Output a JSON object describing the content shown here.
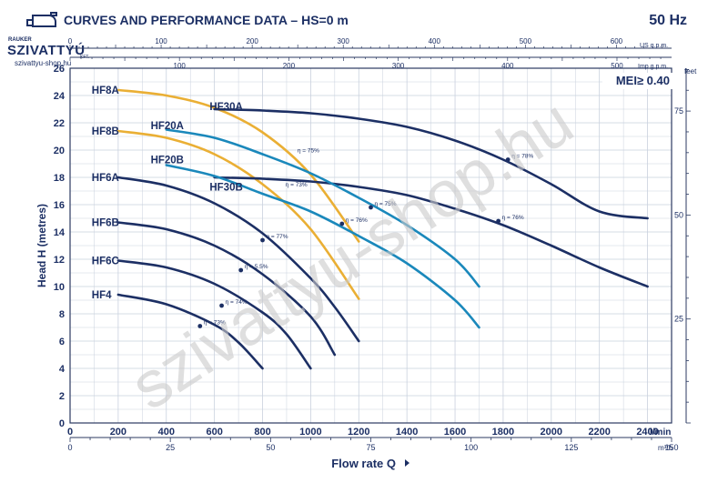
{
  "header": {
    "title": "CURVES AND PERFORMANCE DATA  –  HS=0 m",
    "freq": "50 Hz",
    "brand": "SZIVATTYÚ",
    "brand_top": "RAUKER",
    "brand_kft": "KFT.",
    "website": "szivattyu-shop.hu"
  },
  "watermark": "szivattyu-shop.hu",
  "colors": {
    "navy": "#1c2f64",
    "teal": "#1a88bb",
    "gold": "#eaaf34",
    "grid": "#c9d1de",
    "frame": "#2b3a62",
    "text": "#1c2f64",
    "watermark": "#c9c9c9"
  },
  "chart_data": {
    "type": "line",
    "mei": "MEI≥ 0.40",
    "xlabel": "Flow rate Q",
    "ylabel": "Head H (metres)",
    "x_unit": "l/min",
    "m3h_unit": "m³/h",
    "feet_unit": "feet",
    "us_unit": "US g.p.m.",
    "imp_unit": "Imp g.p.m.",
    "xlim": [
      0,
      2500
    ],
    "ylim": [
      0,
      26
    ],
    "x_ticks": [
      0,
      200,
      400,
      600,
      800,
      1000,
      1200,
      1400,
      1600,
      1800,
      2000,
      2200,
      2400
    ],
    "y_ticks": [
      0,
      2,
      4,
      6,
      8,
      10,
      12,
      14,
      16,
      18,
      20,
      22,
      24,
      26
    ],
    "m3h_ticks": [
      0,
      25,
      50,
      75,
      100,
      125,
      150
    ],
    "us_ticks": [
      0,
      100,
      200,
      300,
      400,
      500,
      600
    ],
    "imp_ticks": [
      100,
      200,
      300,
      400,
      500
    ],
    "feet_ticks": [
      25,
      50,
      75
    ],
    "series": [
      {
        "name": "HF8A",
        "color": "gold",
        "label_at": [
          90,
          24.4
        ],
        "x": [
          200,
          400,
          600,
          800,
          1000,
          1200
        ],
        "y": [
          24.4,
          24,
          23.1,
          21.3,
          18.2,
          13.3
        ]
      },
      {
        "name": "HF8B",
        "color": "gold",
        "label_at": [
          90,
          21.4
        ],
        "x": [
          200,
          400,
          600,
          800,
          1000,
          1200
        ],
        "y": [
          21.4,
          20.9,
          19.7,
          17.5,
          14.2,
          9.1
        ]
      },
      {
        "name": "HF30A",
        "color": "navy",
        "label_at": [
          580,
          23.2
        ],
        "x": [
          600,
          800,
          1000,
          1200,
          1400,
          1600,
          1800,
          2000,
          2200,
          2400
        ],
        "y": [
          23,
          22.9,
          22.7,
          22.3,
          21.7,
          20.7,
          19.3,
          17.5,
          15.5,
          15
        ]
      },
      {
        "name": "HF30B",
        "color": "navy",
        "label_at": [
          580,
          17.3
        ],
        "x": [
          600,
          800,
          1000,
          1200,
          1400,
          1600,
          1800,
          2000,
          2200,
          2400
        ],
        "y": [
          18,
          17.9,
          17.7,
          17.3,
          16.7,
          15.7,
          14.5,
          13,
          11.4,
          10
        ]
      },
      {
        "name": "HF20A",
        "color": "teal",
        "label_at": [
          335,
          21.8
        ],
        "x": [
          400,
          600,
          800,
          1000,
          1200,
          1400,
          1600,
          1700
        ],
        "y": [
          21.5,
          20.9,
          19.7,
          18.3,
          16.5,
          14.5,
          12,
          10
        ]
      },
      {
        "name": "HF20B",
        "color": "teal",
        "label_at": [
          335,
          19.3
        ],
        "x": [
          400,
          600,
          800,
          1000,
          1200,
          1400,
          1600,
          1700
        ],
        "y": [
          18.9,
          18.1,
          16.8,
          15.5,
          13.7,
          11.7,
          9,
          7
        ]
      },
      {
        "name": "HF6A",
        "color": "navy",
        "label_at": [
          90,
          18
        ],
        "x": [
          200,
          400,
          600,
          800,
          1000,
          1100,
          1200
        ],
        "y": [
          18,
          17.4,
          16.1,
          13.9,
          10.6,
          8.5,
          6
        ]
      },
      {
        "name": "HF6B",
        "color": "navy",
        "label_at": [
          90,
          14.7
        ],
        "x": [
          200,
          400,
          600,
          800,
          1000,
          1100
        ],
        "y": [
          14.7,
          14.2,
          13,
          10.9,
          7.8,
          5
        ]
      },
      {
        "name": "HF6C",
        "color": "navy",
        "label_at": [
          90,
          11.9
        ],
        "x": [
          200,
          400,
          600,
          800,
          900,
          1000
        ],
        "y": [
          11.9,
          11.4,
          10.2,
          8.1,
          6.5,
          4
        ]
      },
      {
        "name": "HF4",
        "color": "navy",
        "label_at": [
          90,
          9.4
        ],
        "x": [
          200,
          400,
          600,
          700,
          800
        ],
        "y": [
          9.4,
          8.7,
          7.2,
          5.9,
          4
        ]
      }
    ],
    "efficiency_labels": [
      {
        "text": "η = 75%",
        "x": 930,
        "y": 19.7,
        "dot": false
      },
      {
        "text": "η = 73%",
        "x": 880,
        "y": 17.2,
        "dot": false
      },
      {
        "text": "η = 78%",
        "x": 1820,
        "y": 19.3,
        "dot": true,
        "dot_x": 1820
      },
      {
        "text": "η = 76%",
        "x": 1780,
        "y": 14.8,
        "dot": true,
        "dot_x": 1780
      },
      {
        "text": "η = 75%",
        "x": 1250,
        "y": 15.8,
        "dot": true,
        "dot_x": 1250
      },
      {
        "text": "η = 76%",
        "x": 1130,
        "y": 14.6,
        "dot": true,
        "dot_x": 1130
      },
      {
        "text": "η = 77%",
        "x": 800,
        "y": 13.4,
        "dot": true,
        "dot_x": 800
      },
      {
        "text": "η = 5.5%",
        "x": 710,
        "y": 11.2,
        "dot": true,
        "dot_x": 710
      },
      {
        "text": "η = 74%",
        "x": 630,
        "y": 8.6,
        "dot": true,
        "dot_x": 630
      },
      {
        "text": "η = 73%",
        "x": 540,
        "y": 7.1,
        "dot": true,
        "dot_x": 540
      }
    ]
  }
}
